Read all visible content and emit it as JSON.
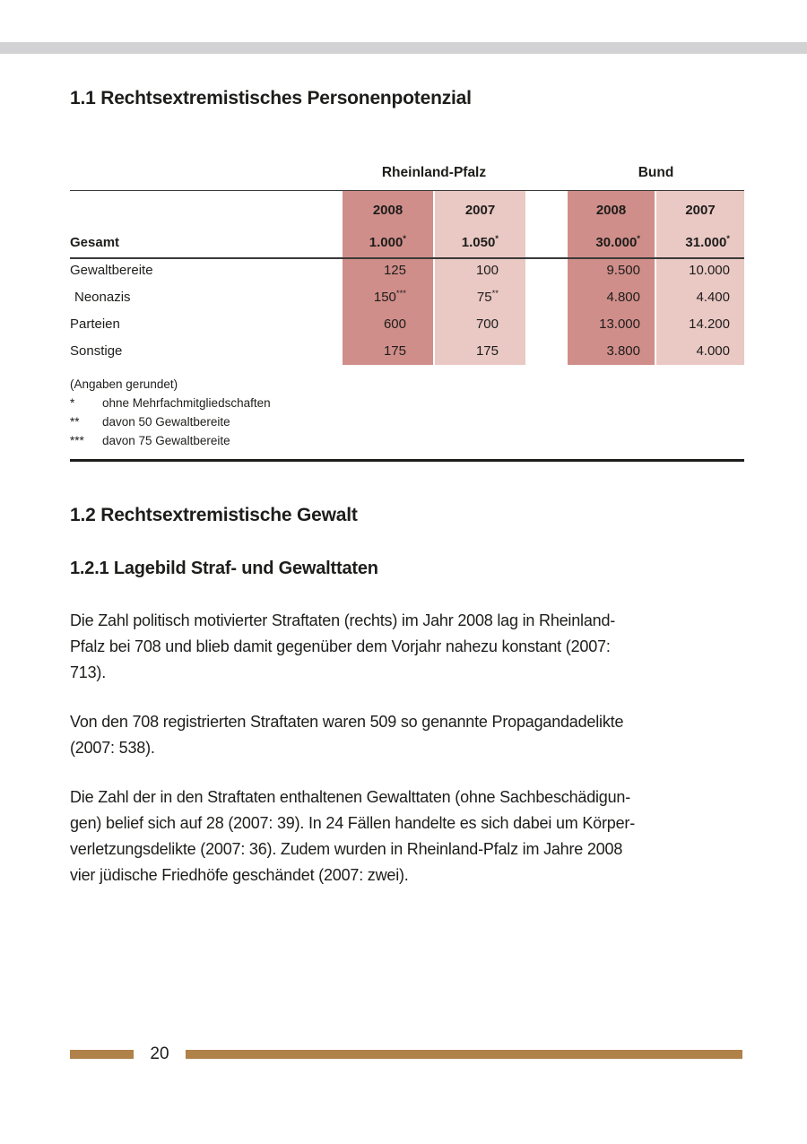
{
  "colors": {
    "top_bar_gray": "#d2d2d4",
    "table_dark_pink": "#d08e8a",
    "table_light_pink": "#eac8c4",
    "footer_brown": "#b08148",
    "text": "#1d1d1b"
  },
  "section1": {
    "title": "1.1 Rechtsextremistisches Personenpotenzial"
  },
  "table": {
    "group_headers": [
      "Rheinland-Pfalz",
      "Bund"
    ],
    "year_headers": [
      "2008",
      "2007",
      "2008",
      "2007"
    ],
    "rows": [
      {
        "label": "Gesamt",
        "values": [
          {
            "v": "1.000",
            "sup": "*"
          },
          {
            "v": "1.050",
            "sup": "*"
          },
          {
            "v": "30.000",
            "sup": "*"
          },
          {
            "v": "31.000",
            "sup": "*"
          }
        ]
      },
      {
        "label": "Gewaltbereite",
        "values": [
          {
            "v": "125"
          },
          {
            "v": "100"
          },
          {
            "v": "9.500"
          },
          {
            "v": "10.000"
          }
        ]
      },
      {
        "label": "Neonazis",
        "values": [
          {
            "v": "150",
            "sup": "***"
          },
          {
            "v": "75",
            "sup": "**"
          },
          {
            "v": "4.800"
          },
          {
            "v": "4.400"
          }
        ]
      },
      {
        "label": "Parteien",
        "values": [
          {
            "v": "600"
          },
          {
            "v": "700"
          },
          {
            "v": "13.000"
          },
          {
            "v": "14.200"
          }
        ]
      },
      {
        "label": "Sonstige",
        "values": [
          {
            "v": "175"
          },
          {
            "v": "175"
          },
          {
            "v": "3.800"
          },
          {
            "v": "4.000"
          }
        ]
      }
    ],
    "footnotes": {
      "note": "(Angaben gerundet)",
      "items": [
        {
          "marker": "*",
          "text": "ohne Mehrfachmitgliedschaften"
        },
        {
          "marker": "**",
          "text": "davon 50 Gewaltbereite"
        },
        {
          "marker": "***",
          "text": "davon 75 Gewaltbereite"
        }
      ]
    }
  },
  "section2": {
    "title": "1.2 Rechtsextremistische Gewalt",
    "subtitle": "1.2.1 Lagebild Straf- und Gewalttaten",
    "paragraphs": [
      {
        "lines": [
          "Die Zahl politisch motivierter Straftaten (rechts) im Jahr 2008 lag in Rheinland-",
          "Pfalz bei 708 und blieb damit gegenüber dem Vorjahr nahezu konstant (2007:",
          "713)."
        ]
      },
      {
        "lines": [
          "Von den 708 registrierten Straftaten waren 509 so genannte Propagandadelikte",
          "(2007: 538)."
        ]
      },
      {
        "lines": [
          "Die Zahl der in den Straftaten enthaltenen Gewalttaten (ohne Sachbeschädigun-",
          "gen) belief sich auf 28 (2007: 39). In 24 Fällen handelte es sich dabei um Körper-",
          "verletzungsdelikte (2007: 36). Zudem wurden in Rheinland-Pfalz im Jahre 2008",
          "vier jüdische Friedhöfe geschändet (2007: zwei)."
        ]
      }
    ]
  },
  "footer": {
    "page_number": "20"
  }
}
